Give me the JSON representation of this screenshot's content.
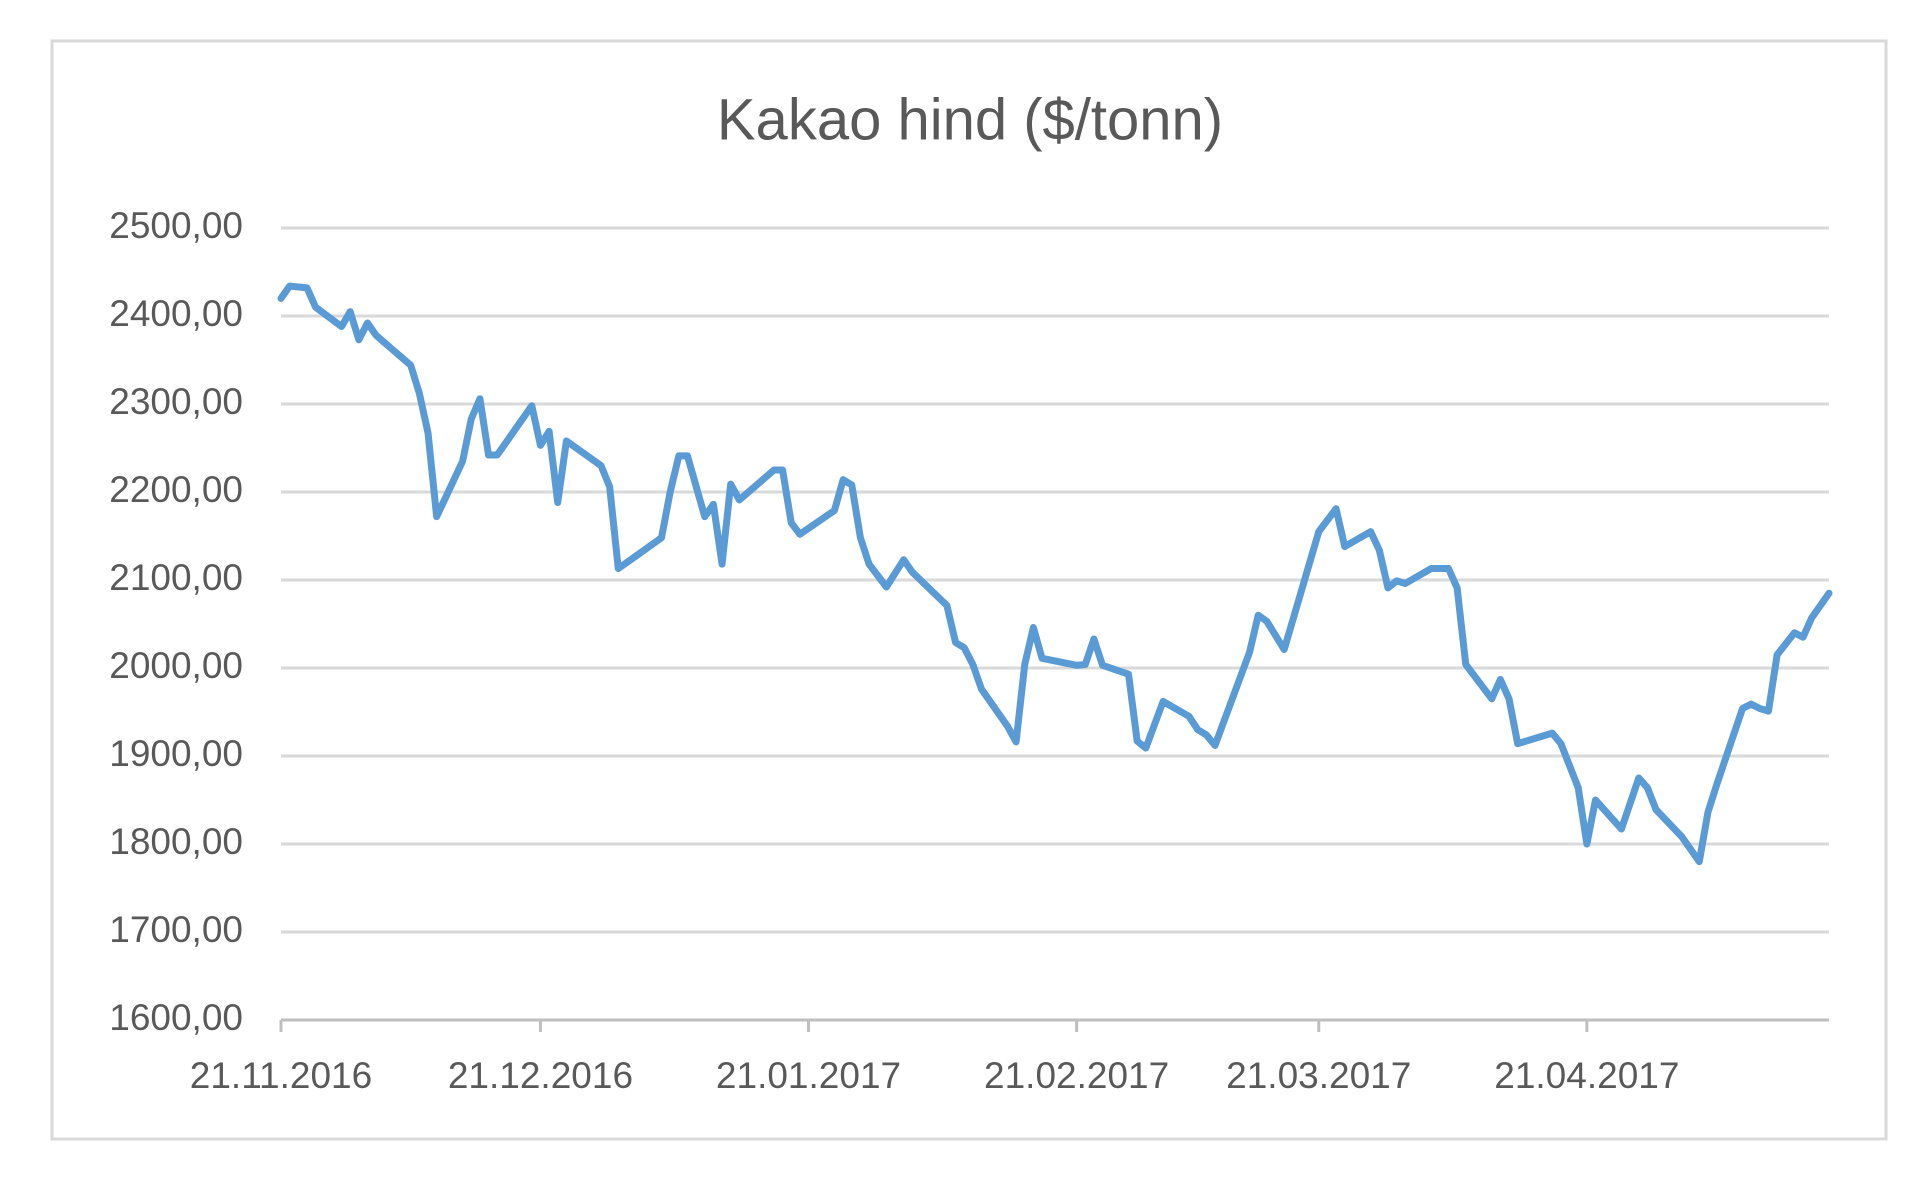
{
  "chart_data": {
    "type": "line",
    "title": "Kakao hind ($/tonn)",
    "x": [
      "2016-11-21",
      "2016-11-22",
      "2016-11-24",
      "2016-11-25",
      "2016-11-28",
      "2016-11-29",
      "2016-11-30",
      "2016-12-01",
      "2016-12-02",
      "2016-12-06",
      "2016-12-07",
      "2016-12-08",
      "2016-12-09",
      "2016-12-12",
      "2016-12-13",
      "2016-12-14",
      "2016-12-15",
      "2016-12-16",
      "2016-12-20",
      "2016-12-21",
      "2016-12-22",
      "2016-12-23",
      "2016-12-24",
      "2016-12-28",
      "2016-12-29",
      "2016-12-30",
      "2017-01-04",
      "2017-01-05",
      "2017-01-06",
      "2017-01-07",
      "2017-01-09",
      "2017-01-10",
      "2017-01-11",
      "2017-01-12",
      "2017-01-13",
      "2017-01-17",
      "2017-01-18",
      "2017-01-19",
      "2017-01-20",
      "2017-01-24",
      "2017-01-25",
      "2017-01-26",
      "2017-01-27",
      "2017-01-28",
      "2017-01-30",
      "2017-02-01",
      "2017-02-02",
      "2017-02-06",
      "2017-02-07",
      "2017-02-08",
      "2017-02-09",
      "2017-02-10",
      "2017-02-13",
      "2017-02-14",
      "2017-02-15",
      "2017-02-16",
      "2017-02-17",
      "2017-02-21",
      "2017-02-22",
      "2017-02-23",
      "2017-02-24",
      "2017-02-27",
      "2017-02-28",
      "2017-03-01",
      "2017-03-03",
      "2017-03-06",
      "2017-03-07",
      "2017-03-08",
      "2017-03-09",
      "2017-03-13",
      "2017-03-14",
      "2017-03-15",
      "2017-03-17",
      "2017-03-19",
      "2017-03-21",
      "2017-03-23",
      "2017-03-24",
      "2017-03-27",
      "2017-03-28",
      "2017-03-29",
      "2017-03-30",
      "2017-03-31",
      "2017-04-03",
      "2017-04-05",
      "2017-04-06",
      "2017-04-07",
      "2017-04-10",
      "2017-04-11",
      "2017-04-12",
      "2017-04-13",
      "2017-04-17",
      "2017-04-18",
      "2017-04-20",
      "2017-04-21",
      "2017-04-22",
      "2017-04-25",
      "2017-04-27",
      "2017-04-28",
      "2017-04-29",
      "2017-05-02",
      "2017-05-04",
      "2017-05-05",
      "2017-05-06",
      "2017-05-09",
      "2017-05-10",
      "2017-05-11",
      "2017-05-12",
      "2017-05-13",
      "2017-05-15",
      "2017-05-16",
      "2017-05-17",
      "2017-05-19"
    ],
    "series": [
      {
        "color": "#5b9bd5",
        "values": [
          2420,
          2434,
          2432,
          2410,
          2388,
          2405,
          2373,
          2392,
          2378,
          2344,
          2312,
          2267,
          2172,
          2235,
          2283,
          2306,
          2242,
          2242,
          2298,
          2253,
          2269,
          2188,
          2258,
          2230,
          2206,
          2113,
          2148,
          2200,
          2241,
          2241,
          2172,
          2186,
          2118,
          2209,
          2191,
          2225,
          2225,
          2165,
          2152,
          2179,
          2214,
          2208,
          2148,
          2118,
          2092,
          2123,
          2109,
          2071,
          2029,
          2023,
          2004,
          1976,
          1934,
          1916,
          2004,
          2046,
          2011,
          2003,
          2004,
          2033,
          2003,
          1993,
          1917,
          1909,
          1962,
          1945,
          1930,
          1924,
          1912,
          2018,
          2060,
          2053,
          2021,
          2088,
          2155,
          2181,
          2138,
          2155,
          2134,
          2091,
          2099,
          2096,
          2113,
          2113,
          2091,
          2004,
          1965,
          1987,
          1965,
          1914,
          1926,
          1914,
          1864,
          1800,
          1850,
          1817,
          1875,
          1864,
          1839,
          1808,
          1780,
          1836,
          1867,
          1954,
          1959,
          1954,
          1951,
          2015,
          2040,
          2035,
          2057,
          2085
        ]
      }
    ],
    "xlim": [
      "2016-11-21",
      "2017-05-19"
    ],
    "xticks": [
      {
        "value": "2016-11-21",
        "label": "21.11.2016"
      },
      {
        "value": "2016-12-21",
        "label": "21.12.2016"
      },
      {
        "value": "2017-01-21",
        "label": "21.01.2017"
      },
      {
        "value": "2017-02-21",
        "label": "21.02.2017"
      },
      {
        "value": "2017-03-21",
        "label": "21.03.2017"
      },
      {
        "value": "2017-04-21",
        "label": "21.04.2017"
      }
    ],
    "ylim": [
      1600,
      2500
    ],
    "yticks": [
      {
        "value": 1600,
        "label": "1600,00"
      },
      {
        "value": 1700,
        "label": "1700,00"
      },
      {
        "value": 1800,
        "label": "1800,00"
      },
      {
        "value": 1900,
        "label": "1900,00"
      },
      {
        "value": 2000,
        "label": "2000,00"
      },
      {
        "value": 2100,
        "label": "2100,00"
      },
      {
        "value": 2200,
        "label": "2200,00"
      },
      {
        "value": 2300,
        "label": "2300,00"
      },
      {
        "value": 2400,
        "label": "2400,00"
      },
      {
        "value": 2500,
        "label": "2500,00"
      }
    ],
    "grid": true
  }
}
